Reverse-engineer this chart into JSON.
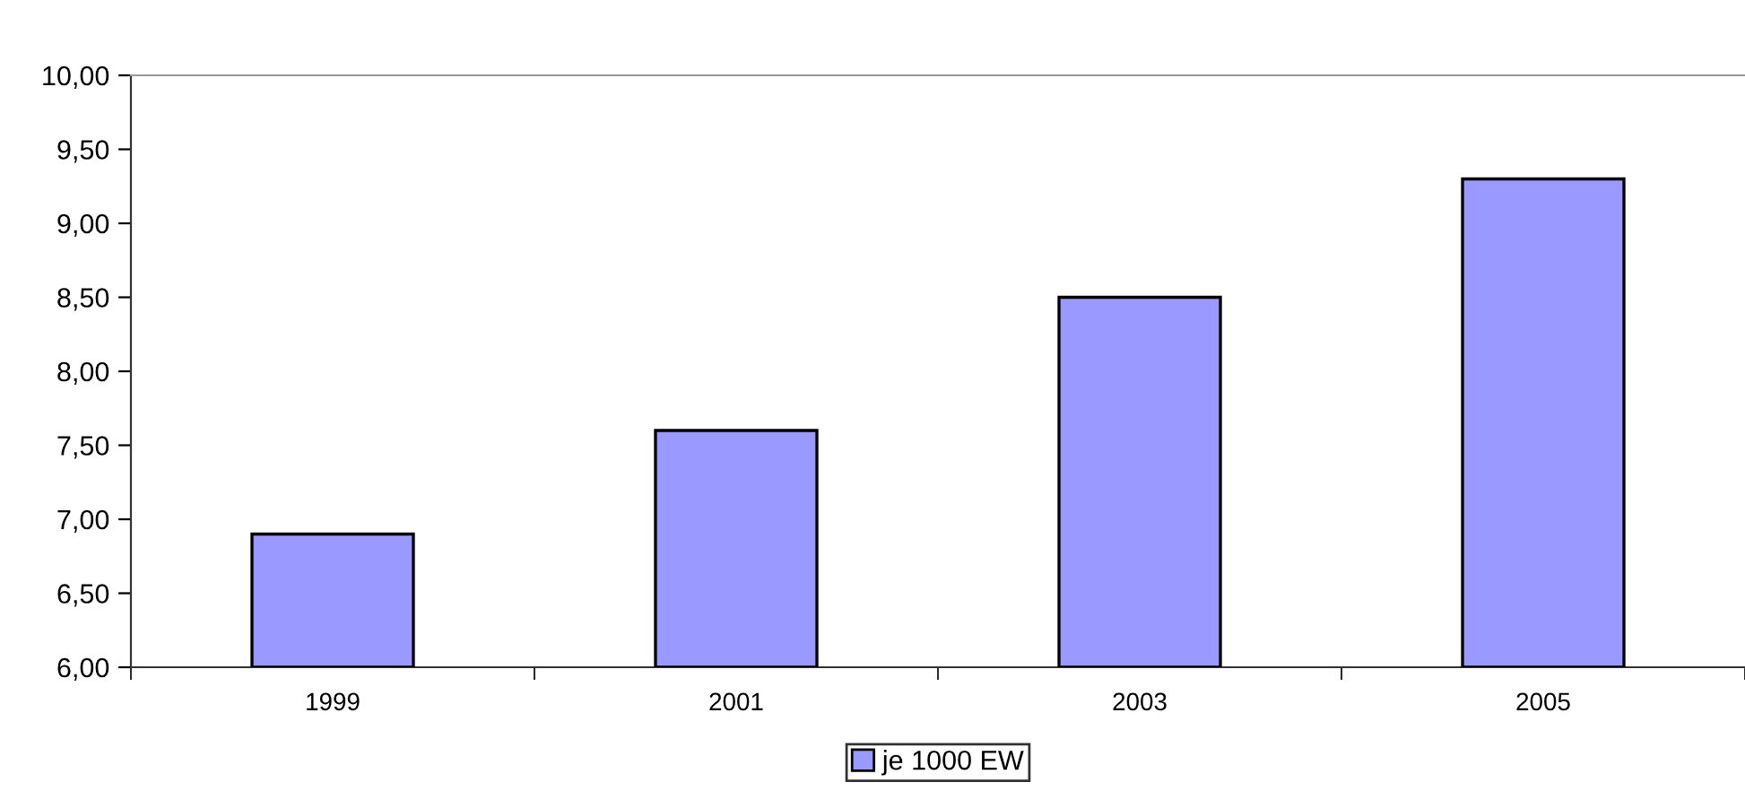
{
  "chart_data": {
    "type": "bar",
    "categories": [
      "1999",
      "2001",
      "2003",
      "2005"
    ],
    "series": [
      {
        "name": "je 1000 EW",
        "color": "#9999ff",
        "values": [
          6.9,
          7.6,
          8.5,
          9.3
        ]
      }
    ],
    "ylim": [
      6,
      10
    ],
    "yticks": [
      {
        "value": 6,
        "label": "6,00"
      },
      {
        "value": 6.5,
        "label": "6,50"
      },
      {
        "value": 7,
        "label": "7,00"
      },
      {
        "value": 7.5,
        "label": "7,50"
      },
      {
        "value": 8,
        "label": "8,00"
      },
      {
        "value": 8.5,
        "label": "8,50"
      },
      {
        "value": 9,
        "label": "9,00"
      },
      {
        "value": 9.5,
        "label": "9,50"
      },
      {
        "value": 10,
        "label": "10,00"
      }
    ],
    "grid": false,
    "legend": "bottom"
  }
}
